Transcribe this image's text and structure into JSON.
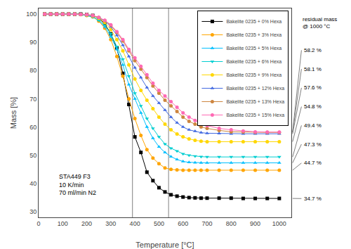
{
  "chart_data": {
    "type": "line",
    "x_label": "Temperature [°C]",
    "y_label": "Mass [%]",
    "xlim": [
      0,
      1050
    ],
    "ylim": [
      28,
      102
    ],
    "xticks": [
      0,
      100,
      200,
      300,
      400,
      500,
      600,
      700,
      800,
      900,
      1000
    ],
    "yticks": [
      30,
      40,
      50,
      60,
      70,
      80,
      90,
      100
    ],
    "grid": false,
    "legend": "upper right",
    "vlines": [
      390,
      540
    ],
    "x": [
      25,
      50,
      75,
      100,
      125,
      150,
      175,
      200,
      225,
      250,
      275,
      300,
      325,
      350,
      375,
      400,
      425,
      450,
      475,
      500,
      525,
      550,
      575,
      600,
      625,
      650,
      675,
      700,
      750,
      800,
      850,
      900,
      950,
      1000
    ],
    "series": [
      {
        "name": "Bakelite 0235 + 0% Hexa",
        "color": "#000000",
        "marker": "square",
        "values": [
          100,
          100,
          100,
          100,
          100,
          100,
          100,
          99.8,
          99.5,
          98.5,
          96.5,
          93,
          88,
          79,
          68,
          56.5,
          51,
          44,
          41,
          38.5,
          37,
          36,
          35.5,
          35.2,
          35.0,
          34.9,
          34.8,
          34.8,
          34.8,
          34.8,
          34.7,
          34.7,
          34.7,
          34.7
        ]
      },
      {
        "name": "Bakelite 0235 + 3% Hexa",
        "color": "#FFA500",
        "marker": "circle",
        "values": [
          100,
          100,
          100,
          100,
          100,
          100,
          99.8,
          99.5,
          99,
          97.5,
          95,
          91,
          85,
          78,
          70,
          63,
          57,
          52,
          49,
          47,
          45.5,
          45,
          44.8,
          44.7,
          44.7,
          44.7,
          44.7,
          44.7,
          44.7,
          44.7,
          44.7,
          44.7,
          44.7,
          44.7
        ]
      },
      {
        "name": "Bakelite 0235 + 5% Hexa",
        "color": "#00BFFF",
        "marker": "triangle-up",
        "values": [
          100,
          100,
          100,
          100,
          100,
          100,
          99.8,
          99.5,
          99,
          97.8,
          95.5,
          92,
          87.5,
          82,
          75,
          70,
          65,
          60,
          56,
          53,
          51,
          49.5,
          48.5,
          47.8,
          47.5,
          47.4,
          47.3,
          47.3,
          47.3,
          47.3,
          47.3,
          47.3,
          47.3,
          47.3
        ]
      },
      {
        "name": "Bakelite 0235 + 6% Hexa",
        "color": "#00CED1",
        "marker": "triangle-down",
        "values": [
          100,
          100,
          100,
          100,
          100,
          100,
          99.8,
          99.5,
          99,
          97.8,
          96,
          93,
          88.5,
          84,
          78,
          72,
          67.5,
          63,
          59.5,
          56.5,
          54,
          52.5,
          51.5,
          50.5,
          50.0,
          49.7,
          49.5,
          49.4,
          49.4,
          49.4,
          49.4,
          49.4,
          49.4,
          49.4
        ]
      },
      {
        "name": "Bakelite 0235 + 9% Hexa",
        "color": "#FFD700",
        "marker": "circle",
        "values": [
          100,
          100,
          100,
          100,
          100,
          100,
          99.9,
          99.7,
          99.3,
          98.5,
          97,
          94.5,
          91,
          87,
          82,
          77,
          73,
          69.5,
          66.5,
          63.5,
          61,
          59,
          57.5,
          56.5,
          55.8,
          55.3,
          55.0,
          54.8,
          54.8,
          54.8,
          54.8,
          54.8,
          54.8,
          54.8
        ]
      },
      {
        "name": "Bakelite 0235 + 12% Hexa",
        "color": "#4169E1",
        "marker": "triangle-up",
        "values": [
          100,
          100,
          100,
          100,
          100,
          100,
          99.9,
          99.7,
          99.4,
          98.7,
          97.5,
          95.5,
          92.5,
          89,
          85,
          81,
          77.5,
          74,
          71,
          68.5,
          66,
          63.5,
          61.5,
          60,
          59.0,
          58.5,
          58.0,
          57.8,
          57.7,
          57.6,
          57.6,
          57.6,
          57.6,
          57.6
        ]
      },
      {
        "name": "Bakelite 0235 + 13% Hexa",
        "color": "#CD853F",
        "marker": "circle",
        "values": [
          100,
          100,
          100,
          100,
          100,
          100,
          99.9,
          99.8,
          99.5,
          98.8,
          97.7,
          96,
          93.5,
          90.5,
          87,
          83.5,
          80.5,
          77.5,
          74.5,
          72,
          69.5,
          67.5,
          65.5,
          63.5,
          62.0,
          61.0,
          60.0,
          59.5,
          58.8,
          58.3,
          58.2,
          58.1,
          58.1,
          58.1
        ]
      },
      {
        "name": "Bakelite 0235 + 15% Hexa",
        "color": "#FF69B4",
        "marker": "circle",
        "values": [
          100,
          100,
          100,
          100,
          100,
          100,
          99.9,
          99.8,
          99.5,
          98.8,
          97.8,
          96.2,
          93.8,
          91,
          87.5,
          84.5,
          81.5,
          78.5,
          75.5,
          73,
          71,
          69,
          67,
          65,
          63.5,
          62.3,
          61.3,
          60.5,
          59.5,
          59.0,
          58.6,
          58.3,
          58.2,
          58.2
        ]
      }
    ],
    "annotations": [
      {
        "text": "STA449 F3\n10 K/min\n70 ml/min N2",
        "x": 80,
        "y": 35
      }
    ],
    "residual_header": "residual mass\n@ 1000 °C",
    "residuals": [
      {
        "value": 58.2,
        "label": "58.2 %"
      },
      {
        "value": 58.1,
        "label": "58.1 %"
      },
      {
        "value": 57.6,
        "label": "57.6 %"
      },
      {
        "value": 54.8,
        "label": "54.8 %"
      },
      {
        "value": 49.4,
        "label": "49.4 %"
      },
      {
        "value": 47.3,
        "label": "47.3 %"
      },
      {
        "value": 44.7,
        "label": "44.7 %"
      },
      {
        "value": 34.7,
        "label": "34.7 %"
      }
    ]
  }
}
